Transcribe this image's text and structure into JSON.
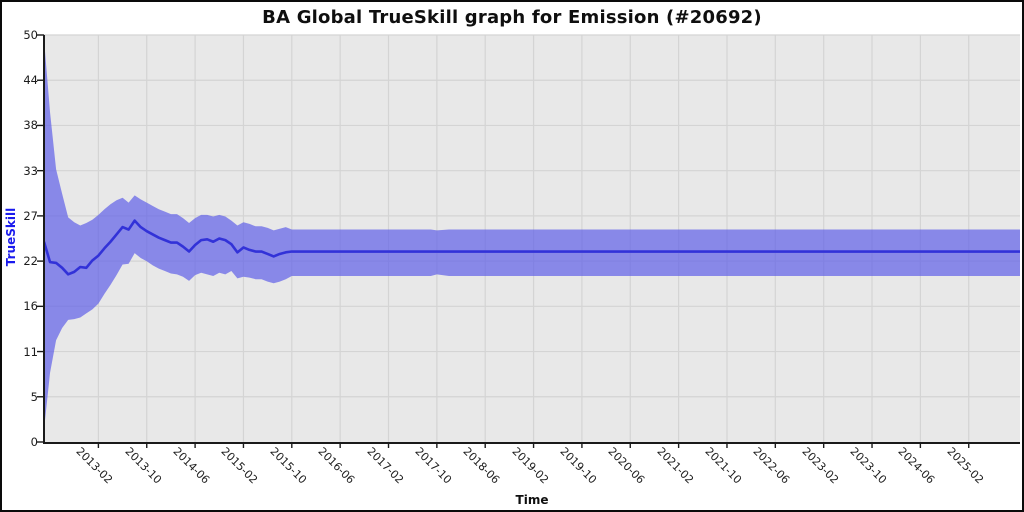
{
  "title": "BA Global TrueSkill graph for Emission (#20692)",
  "chart_data": {
    "type": "area",
    "title": "BA Global TrueSkill graph for Emission (#20692)",
    "xlabel": "Time",
    "ylabel": "TrueSkill",
    "ylim": [
      0,
      50
    ],
    "x_range": [
      "2012-05",
      "2025-11"
    ],
    "grid": true,
    "legend_position": "none",
    "y_tick_labels": [
      "0",
      "5",
      "11",
      "16",
      "22",
      "27",
      "33",
      "38",
      "44",
      "50"
    ],
    "x_ticks": [
      "2013-02",
      "2013-10",
      "2014-06",
      "2015-02",
      "2015-10",
      "2016-06",
      "2017-02",
      "2017-10",
      "2018-06",
      "2019-02",
      "2019-10",
      "2020-06",
      "2021-02",
      "2021-10",
      "2022-06",
      "2023-02",
      "2023-10",
      "2024-06",
      "2025-02"
    ],
    "point_format": [
      "date",
      "trueskill",
      "band_lower",
      "band_upper"
    ],
    "series": [
      {
        "name": "TrueSkill",
        "points": [
          [
            "2012-05",
            24.6,
            1.5,
            49.5
          ],
          [
            "2012-06",
            22.1,
            8.5,
            40.5
          ],
          [
            "2012-07",
            22.0,
            12.5,
            33.5
          ],
          [
            "2012-08",
            21.4,
            14.0,
            30.5
          ],
          [
            "2012-09",
            20.6,
            15.0,
            27.6
          ],
          [
            "2012-10",
            20.9,
            15.1,
            27.0
          ],
          [
            "2012-11",
            21.5,
            15.3,
            26.6
          ],
          [
            "2012-12",
            21.4,
            15.8,
            26.9
          ],
          [
            "2013-01",
            22.3,
            16.3,
            27.3
          ],
          [
            "2013-02",
            22.9,
            17.0,
            27.9
          ],
          [
            "2013-03",
            23.8,
            18.2,
            28.6
          ],
          [
            "2013-04",
            24.6,
            19.3,
            29.2
          ],
          [
            "2013-05",
            25.5,
            20.5,
            29.7
          ],
          [
            "2013-06",
            26.4,
            21.8,
            30.0
          ],
          [
            "2013-07",
            26.1,
            21.9,
            29.4
          ],
          [
            "2013-08",
            27.2,
            23.2,
            30.3
          ],
          [
            "2013-09",
            26.4,
            22.6,
            29.8
          ],
          [
            "2013-10",
            25.9,
            22.2,
            29.4
          ],
          [
            "2013-11",
            25.5,
            21.7,
            29.0
          ],
          [
            "2013-12",
            25.1,
            21.3,
            28.6
          ],
          [
            "2014-01",
            24.8,
            21.0,
            28.3
          ],
          [
            "2014-02",
            24.5,
            20.7,
            28.0
          ],
          [
            "2014-03",
            24.5,
            20.6,
            28.0
          ],
          [
            "2014-04",
            24.0,
            20.3,
            27.5
          ],
          [
            "2014-05",
            23.4,
            19.8,
            26.9
          ],
          [
            "2014-06",
            24.2,
            20.5,
            27.5
          ],
          [
            "2014-07",
            24.8,
            20.8,
            27.9
          ],
          [
            "2014-08",
            24.9,
            20.6,
            27.9
          ],
          [
            "2014-09",
            24.6,
            20.4,
            27.7
          ],
          [
            "2014-10",
            25.0,
            20.8,
            27.9
          ],
          [
            "2014-11",
            24.8,
            20.6,
            27.7
          ],
          [
            "2014-12",
            24.3,
            21.0,
            27.2
          ],
          [
            "2015-01",
            23.3,
            20.1,
            26.6
          ],
          [
            "2015-02",
            23.9,
            20.3,
            27.0
          ],
          [
            "2015-03",
            23.6,
            20.2,
            26.8
          ],
          [
            "2015-04",
            23.4,
            20.0,
            26.5
          ],
          [
            "2015-05",
            23.4,
            20.0,
            26.5
          ],
          [
            "2015-06",
            23.1,
            19.7,
            26.3
          ],
          [
            "2015-07",
            22.8,
            19.5,
            26.0
          ],
          [
            "2015-08",
            23.1,
            19.7,
            26.2
          ],
          [
            "2015-09",
            23.3,
            20.0,
            26.4
          ],
          [
            "2015-10",
            23.4,
            20.4,
            26.1
          ],
          [
            "2016-06",
            23.4,
            20.4,
            26.1
          ],
          [
            "2017-09",
            23.4,
            20.4,
            26.1
          ],
          [
            "2017-10",
            23.4,
            20.6,
            26.0
          ],
          [
            "2017-12",
            23.4,
            20.4,
            26.1
          ],
          [
            "2025-11",
            23.4,
            20.4,
            26.1
          ]
        ]
      }
    ],
    "colors": {
      "band_fill": "rgba(99,99,232,0.72)",
      "line": "#3232d8",
      "plot_background": "#e8e8e8",
      "gridline": "#d4d4d4",
      "axis_spine": "#1a1a1a",
      "tick_text": "#1c1c1c",
      "ylabel_text": "#1a1aee",
      "title_text": "#0f0f0f"
    }
  }
}
